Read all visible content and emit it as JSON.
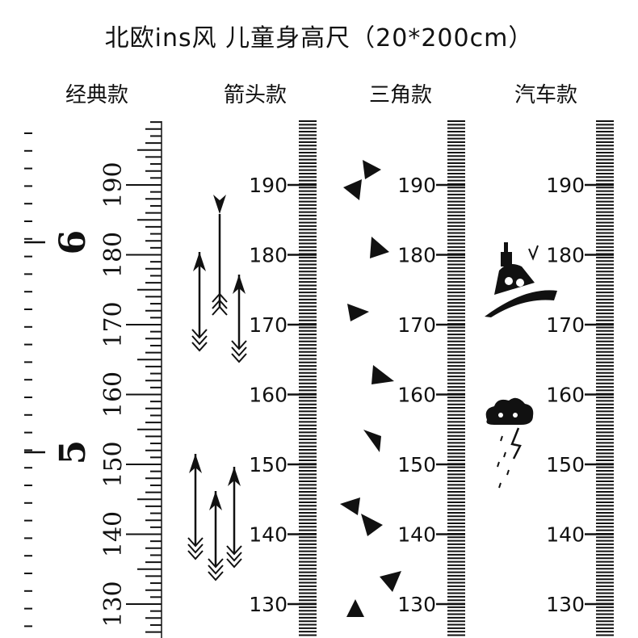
{
  "title": "北欧ins风 儿童身高尺（20*200cm）",
  "styles": [
    {
      "id": "classic",
      "label": "经典款"
    },
    {
      "id": "arrow",
      "label": "箭头款"
    },
    {
      "id": "triangle",
      "label": "三角款"
    },
    {
      "id": "car",
      "label": "汽车款"
    }
  ],
  "classic_ruler": {
    "cm_labels": [
      "190",
      "180",
      "170",
      "160",
      "150",
      "140",
      "130"
    ],
    "feet_labels": [
      "6",
      "5"
    ]
  },
  "modern_ruler": {
    "cm_labels": [
      "190",
      "180",
      "170",
      "160",
      "150",
      "140",
      "130"
    ]
  },
  "colors": {
    "ink": "#111111",
    "background": "#ffffff"
  },
  "decorations": {
    "arrow": [
      "arrow-icon",
      "arrow-icon",
      "arrow-icon",
      "arrow-icon",
      "arrow-icon",
      "arrow-icon"
    ],
    "triangle": [
      "triangle-icon",
      "bowtie-icon"
    ],
    "car": [
      "submarine-icon",
      "storm-cloud-icon"
    ]
  }
}
